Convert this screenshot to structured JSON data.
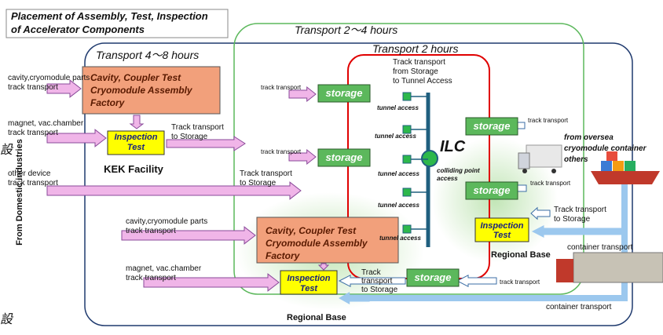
{
  "header": {
    "title": [
      "Placement of Assembly, Test, Inspection",
      "of Accelerator Components"
    ]
  },
  "zones": {
    "transport_2_4": "Transport 2～4 hours",
    "transport_4_8": "Transport 4～8 hours",
    "transport_2": "Transport 2 hours"
  },
  "side_label": "From Domestic industries",
  "edge_chars": [
    "設",
    "設"
  ],
  "kek": {
    "parts": [
      "cavity,cryomodule parts",
      "track transport"
    ],
    "factory": [
      "Cavity, Coupler Test",
      "Cryomodule Assembly",
      "Factory"
    ],
    "magnet": [
      "magnet, vac.chamber",
      "track transport"
    ],
    "inspection": [
      "Inspection",
      "Test"
    ],
    "to_storage": [
      "Track transport",
      "to Storage"
    ],
    "facility": "KEK Facility",
    "other_device": [
      "other device",
      "track transport"
    ],
    "other_to_storage": [
      "Track transport",
      "to Storage"
    ]
  },
  "ilc": {
    "name": "ILC",
    "colliding": [
      "colliding point",
      "access"
    ],
    "tunnel_note": [
      "Track transport",
      "from Storage",
      "to Tunnel Access"
    ],
    "tunnel_access": [
      "tunnel access",
      "tunnel access",
      "tunnel access",
      "tunnel access",
      "tunnel access"
    ],
    "storage": [
      "storage",
      "storage",
      "storage",
      "storage",
      "storage"
    ],
    "storage_in": [
      "track transport",
      "track transport",
      "track transport",
      "track transport",
      "track transport"
    ]
  },
  "regional_east": {
    "oversea": [
      "from oversea",
      "cryomodule container",
      "others"
    ],
    "inspection": [
      "Inspection",
      "Test"
    ],
    "to_storage": [
      "Track transport",
      "to Storage"
    ],
    "base": "Regional Base",
    "container": [
      "container transport",
      "container transport"
    ]
  },
  "regional_south": {
    "parts": [
      "cavity,cryomodule parts",
      "track transport"
    ],
    "factory": [
      "Cavity, Coupler Test",
      "Cryomodule Assembly",
      "Factory"
    ],
    "magnet": [
      "magnet, vac.chamber",
      "track transport"
    ],
    "inspection": [
      "Inspection",
      "Test"
    ],
    "to_storage": [
      "Track",
      "transport",
      "to Storage"
    ],
    "base": "Regional Base"
  }
}
